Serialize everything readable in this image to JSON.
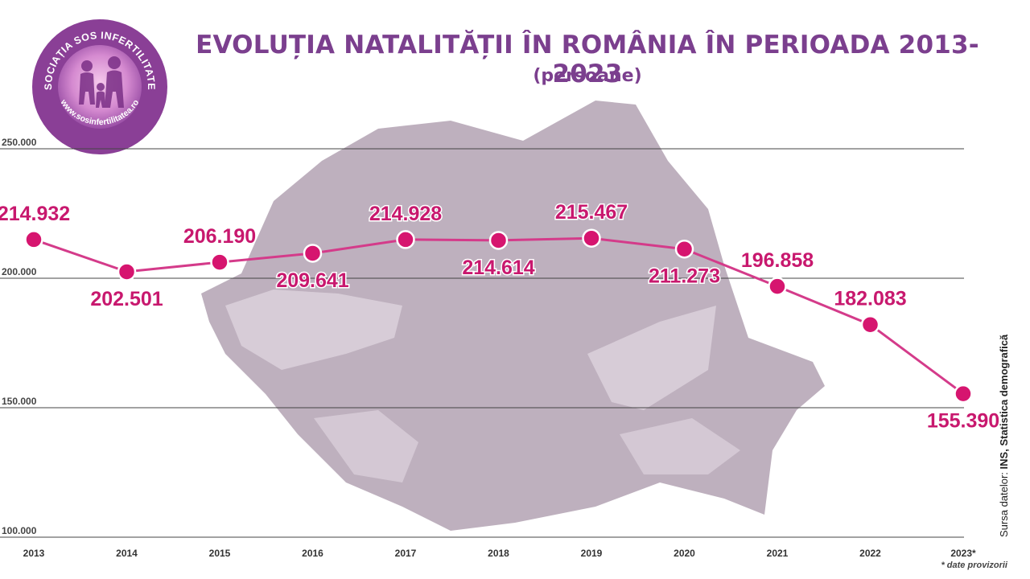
{
  "logo": {
    "top_text": "ASOCIAȚIA SOS INFERTILITATEA",
    "bottom_text": "www.sosinfertilitatea.ro"
  },
  "colors": {
    "title": "#7b3f8e",
    "line": "#d43b8a",
    "point": "#d6156f",
    "label": "#c8186e",
    "map": "#a895a8"
  },
  "source": {
    "prefix": "Sursa datelor: ",
    "value": "INS, Statistica demografică"
  },
  "footnote": "* date provizorii",
  "chart_data": {
    "type": "line",
    "title": "EVOLUȚIA NATALITĂȚII ÎN ROMÂNIA ÎN PERIOADA 2013-2023",
    "subtitle": "(persoane)",
    "categories": [
      "2013",
      "2014",
      "2015",
      "2016",
      "2017",
      "2018",
      "2019",
      "2020",
      "2021",
      "2022",
      "2023*"
    ],
    "series": [
      {
        "values": [
          214932,
          202501,
          206190,
          209641,
          214928,
          214614,
          215467,
          211273,
          196858,
          182083,
          155390
        ],
        "labels": [
          "214.932",
          "202.501",
          "206.190",
          "209.641",
          "214.928",
          "214.614",
          "215.467",
          "211.273",
          "196.858",
          "182.083",
          "155.390"
        ]
      }
    ],
    "y_ticks": [
      {
        "value": 250000,
        "label": "250.000"
      },
      {
        "value": 200000,
        "label": "200.000"
      },
      {
        "value": 150000,
        "label": "150.000"
      },
      {
        "value": 100000,
        "label": "100.000"
      }
    ],
    "ylim": [
      100000,
      250000
    ],
    "grid": true
  }
}
